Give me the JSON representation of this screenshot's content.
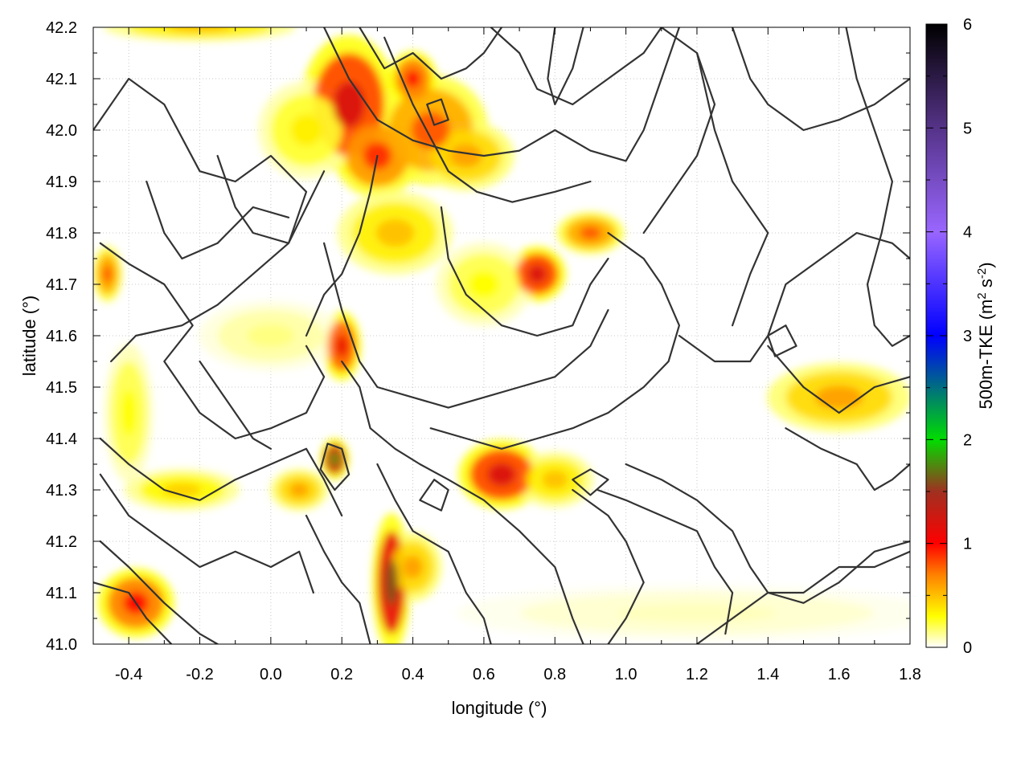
{
  "chart_data": {
    "type": "heatmap",
    "title": "",
    "xlabel": "longitude (°)",
    "ylabel": "latitude (°)",
    "colorbar_label": "500m-TKE (m2 s-2)",
    "colorbar_label_parts": {
      "prefix": "500m-TKE (m",
      "sup1": "2",
      "mid": " s",
      "sup2": "-2",
      "suffix": ")"
    },
    "xlim": [
      -0.5,
      1.8
    ],
    "ylim": [
      41.0,
      42.2
    ],
    "clim": [
      0,
      6
    ],
    "x_ticks": [
      -0.4,
      -0.2,
      0.0,
      0.2,
      0.4,
      0.6,
      0.8,
      1.0,
      1.2,
      1.4,
      1.6,
      1.8
    ],
    "x_tick_labels": [
      "-0.4",
      "-0.2",
      "0.0",
      "0.2",
      "0.4",
      "0.6",
      "0.8",
      "1.0",
      "1.2",
      "1.4",
      "1.6",
      "1.8"
    ],
    "y_ticks": [
      41.0,
      41.1,
      41.2,
      41.3,
      41.4,
      41.5,
      41.6,
      41.7,
      41.8,
      41.9,
      42.0,
      42.1,
      42.2
    ],
    "y_tick_labels": [
      "41.0",
      "41.1",
      "41.2",
      "41.3",
      "41.4",
      "41.5",
      "41.6",
      "41.7",
      "41.8",
      "41.9",
      "42.0",
      "42.1",
      "42.2"
    ],
    "colorbar_ticks": [
      0,
      1,
      2,
      3,
      4,
      5,
      6
    ],
    "colorbar_tick_labels": [
      "0",
      "1",
      "2",
      "3",
      "4",
      "5",
      "6"
    ],
    "colormap": [
      {
        "v": 0.0,
        "color": "#ffffff"
      },
      {
        "v": 0.3,
        "color": "#ffff00"
      },
      {
        "v": 0.7,
        "color": "#ff8000"
      },
      {
        "v": 1.0,
        "color": "#ff0000"
      },
      {
        "v": 1.5,
        "color": "#a03020"
      },
      {
        "v": 2.0,
        "color": "#00dd00"
      },
      {
        "v": 3.0,
        "color": "#0000ff"
      },
      {
        "v": 4.0,
        "color": "#9966ff"
      },
      {
        "v": 5.0,
        "color": "#553388"
      },
      {
        "v": 6.0,
        "color": "#000000"
      }
    ],
    "grid": true,
    "tke_features": [
      {
        "x": 0.22,
        "y": 42.05,
        "rx": 0.1,
        "ry": 0.1,
        "value": 1.2
      },
      {
        "x": 0.3,
        "y": 41.95,
        "rx": 0.09,
        "ry": 0.06,
        "value": 0.9
      },
      {
        "x": 0.45,
        "y": 42.0,
        "rx": 0.12,
        "ry": 0.08,
        "value": 0.8
      },
      {
        "x": 0.4,
        "y": 42.1,
        "rx": 0.05,
        "ry": 0.04,
        "value": 1.0
      },
      {
        "x": 0.55,
        "y": 41.95,
        "rx": 0.1,
        "ry": 0.05,
        "value": 0.6
      },
      {
        "x": 0.1,
        "y": 42.0,
        "rx": 0.1,
        "ry": 0.07,
        "value": 0.35
      },
      {
        "x": 0.35,
        "y": 41.8,
        "rx": 0.12,
        "ry": 0.06,
        "value": 0.5
      },
      {
        "x": 0.75,
        "y": 41.72,
        "rx": 0.06,
        "ry": 0.04,
        "value": 1.2
      },
      {
        "x": 0.9,
        "y": 41.8,
        "rx": 0.07,
        "ry": 0.03,
        "value": 0.8
      },
      {
        "x": 0.2,
        "y": 41.58,
        "rx": 0.04,
        "ry": 0.05,
        "value": 1.1
      },
      {
        "x": 0.18,
        "y": 41.36,
        "rx": 0.03,
        "ry": 0.03,
        "value": 1.8
      },
      {
        "x": 0.34,
        "y": 41.12,
        "rx": 0.04,
        "ry": 0.1,
        "value": 1.6
      },
      {
        "x": 0.4,
        "y": 41.15,
        "rx": 0.06,
        "ry": 0.05,
        "value": 0.6
      },
      {
        "x": 0.65,
        "y": 41.33,
        "rx": 0.09,
        "ry": 0.05,
        "value": 1.2
      },
      {
        "x": 0.8,
        "y": 41.32,
        "rx": 0.08,
        "ry": 0.04,
        "value": 0.5
      },
      {
        "x": -0.38,
        "y": 41.08,
        "rx": 0.08,
        "ry": 0.05,
        "value": 1.0
      },
      {
        "x": -0.46,
        "y": 41.72,
        "rx": 0.03,
        "ry": 0.04,
        "value": 0.8
      },
      {
        "x": -0.25,
        "y": 41.3,
        "rx": 0.12,
        "ry": 0.03,
        "value": 0.45
      },
      {
        "x": 0.08,
        "y": 41.3,
        "rx": 0.06,
        "ry": 0.03,
        "value": 0.6
      },
      {
        "x": 1.6,
        "y": 41.48,
        "rx": 0.15,
        "ry": 0.05,
        "value": 0.6
      },
      {
        "x": -0.2,
        "y": 42.2,
        "rx": 0.2,
        "ry": 0.02,
        "value": 0.5
      },
      {
        "x": 0.0,
        "y": 41.6,
        "rx": 0.15,
        "ry": 0.05,
        "value": 0.15
      },
      {
        "x": 1.2,
        "y": 41.06,
        "rx": 0.5,
        "ry": 0.04,
        "value": 0.08
      },
      {
        "x": 0.6,
        "y": 41.7,
        "rx": 0.1,
        "ry": 0.06,
        "value": 0.3
      },
      {
        "x": -0.4,
        "y": 41.45,
        "rx": 0.05,
        "ry": 0.1,
        "value": 0.3
      }
    ],
    "terrain_contours": [
      [
        [
          -0.5,
          42.0
        ],
        [
          -0.4,
          42.1
        ],
        [
          -0.3,
          42.05
        ],
        [
          -0.2,
          41.92
        ],
        [
          -0.1,
          41.9
        ],
        [
          0.0,
          41.95
        ],
        [
          0.1,
          41.88
        ],
        [
          0.05,
          41.78
        ],
        [
          -0.05,
          41.72
        ],
        [
          -0.15,
          41.66
        ],
        [
          -0.25,
          41.62
        ],
        [
          -0.38,
          41.6
        ],
        [
          -0.45,
          41.55
        ]
      ],
      [
        [
          -0.48,
          41.78
        ],
        [
          -0.4,
          41.74
        ],
        [
          -0.3,
          41.7
        ],
        [
          -0.22,
          41.62
        ],
        [
          -0.3,
          41.55
        ],
        [
          -0.2,
          41.45
        ],
        [
          -0.1,
          41.4
        ],
        [
          0.0,
          41.42
        ],
        [
          0.1,
          41.45
        ],
        [
          0.15,
          41.52
        ],
        [
          0.1,
          41.58
        ]
      ],
      [
        [
          -0.35,
          41.9
        ],
        [
          -0.3,
          41.8
        ],
        [
          -0.25,
          41.75
        ],
        [
          -0.15,
          41.78
        ],
        [
          -0.05,
          41.85
        ],
        [
          0.05,
          41.83
        ]
      ],
      [
        [
          -0.48,
          41.4
        ],
        [
          -0.4,
          41.35
        ],
        [
          -0.3,
          41.3
        ],
        [
          -0.2,
          41.28
        ],
        [
          -0.1,
          41.32
        ],
        [
          0.0,
          41.35
        ],
        [
          0.1,
          41.38
        ],
        [
          0.15,
          41.32
        ],
        [
          0.2,
          41.25
        ]
      ],
      [
        [
          -0.48,
          41.33
        ],
        [
          -0.4,
          41.25
        ],
        [
          -0.3,
          41.2
        ],
        [
          -0.2,
          41.15
        ],
        [
          -0.1,
          41.18
        ],
        [
          0.0,
          41.15
        ],
        [
          0.08,
          41.18
        ],
        [
          0.12,
          41.1
        ]
      ],
      [
        [
          -0.48,
          41.2
        ],
        [
          -0.4,
          41.15
        ],
        [
          -0.3,
          41.08
        ],
        [
          -0.2,
          41.02
        ],
        [
          -0.15,
          41.0
        ]
      ],
      [
        [
          -0.5,
          41.12
        ],
        [
          -0.4,
          41.1
        ],
        [
          -0.35,
          41.05
        ],
        [
          -0.28,
          41.0
        ]
      ],
      [
        [
          0.15,
          42.2
        ],
        [
          0.22,
          42.1
        ],
        [
          0.3,
          42.02
        ],
        [
          0.4,
          41.98
        ],
        [
          0.5,
          41.96
        ],
        [
          0.6,
          41.95
        ],
        [
          0.7,
          41.96
        ],
        [
          0.8,
          42.0
        ]
      ],
      [
        [
          0.32,
          42.18
        ],
        [
          0.4,
          42.05
        ],
        [
          0.5,
          41.92
        ],
        [
          0.58,
          41.88
        ],
        [
          0.68,
          41.86
        ],
        [
          0.8,
          41.88
        ],
        [
          0.9,
          41.9
        ]
      ],
      [
        [
          0.25,
          42.2
        ],
        [
          0.32,
          42.12
        ],
        [
          0.4,
          42.15
        ],
        [
          0.48,
          42.1
        ],
        [
          0.55,
          42.12
        ],
        [
          0.6,
          42.15
        ],
        [
          0.65,
          42.2
        ]
      ],
      [
        [
          0.62,
          42.2
        ],
        [
          0.7,
          42.15
        ],
        [
          0.75,
          42.08
        ],
        [
          0.85,
          42.05
        ],
        [
          0.95,
          42.1
        ],
        [
          1.05,
          42.15
        ],
        [
          1.1,
          42.2
        ]
      ],
      [
        [
          0.8,
          42.0
        ],
        [
          0.9,
          41.96
        ],
        [
          1.0,
          41.94
        ],
        [
          1.05,
          42.0
        ],
        [
          1.1,
          42.1
        ],
        [
          1.15,
          42.2
        ]
      ],
      [
        [
          -0.15,
          41.95
        ],
        [
          -0.1,
          41.85
        ],
        [
          -0.05,
          41.8
        ],
        [
          0.05,
          41.78
        ],
        [
          0.1,
          41.85
        ],
        [
          0.15,
          41.92
        ]
      ],
      [
        [
          0.15,
          41.78
        ],
        [
          0.2,
          41.65
        ],
        [
          0.25,
          41.55
        ],
        [
          0.3,
          41.5
        ],
        [
          0.4,
          41.48
        ],
        [
          0.5,
          41.46
        ],
        [
          0.6,
          41.48
        ],
        [
          0.7,
          41.5
        ],
        [
          0.8,
          41.52
        ],
        [
          0.9,
          41.58
        ],
        [
          0.95,
          41.65
        ]
      ],
      [
        [
          0.48,
          41.85
        ],
        [
          0.5,
          41.75
        ],
        [
          0.55,
          41.68
        ],
        [
          0.65,
          41.62
        ],
        [
          0.75,
          41.6
        ],
        [
          0.85,
          41.62
        ],
        [
          0.9,
          41.7
        ],
        [
          0.95,
          41.75
        ]
      ],
      [
        [
          0.95,
          41.8
        ],
        [
          1.05,
          41.75
        ],
        [
          1.1,
          41.7
        ],
        [
          1.15,
          41.62
        ],
        [
          1.12,
          41.55
        ],
        [
          1.05,
          41.5
        ],
        [
          0.95,
          41.45
        ],
        [
          0.85,
          41.42
        ],
        [
          0.75,
          41.4
        ],
        [
          0.65,
          41.38
        ],
        [
          0.55,
          41.4
        ],
        [
          0.45,
          41.42
        ]
      ],
      [
        [
          0.2,
          41.55
        ],
        [
          0.25,
          41.5
        ],
        [
          0.28,
          41.42
        ],
        [
          0.35,
          41.38
        ],
        [
          0.42,
          41.35
        ],
        [
          0.5,
          41.32
        ],
        [
          0.6,
          41.28
        ],
        [
          0.7,
          41.22
        ],
        [
          0.8,
          41.15
        ],
        [
          0.85,
          41.05
        ],
        [
          0.88,
          41.0
        ]
      ],
      [
        [
          0.3,
          41.35
        ],
        [
          0.35,
          41.28
        ],
        [
          0.4,
          41.22
        ],
        [
          0.5,
          41.18
        ],
        [
          0.55,
          41.1
        ],
        [
          0.6,
          41.05
        ],
        [
          0.62,
          41.0
        ]
      ],
      [
        [
          0.1,
          41.25
        ],
        [
          0.15,
          41.18
        ],
        [
          0.2,
          41.12
        ],
        [
          0.25,
          41.08
        ],
        [
          0.28,
          41.0
        ]
      ],
      [
        [
          0.85,
          41.3
        ],
        [
          0.95,
          41.25
        ],
        [
          1.0,
          41.2
        ],
        [
          1.05,
          41.12
        ],
        [
          1.0,
          41.05
        ],
        [
          0.95,
          41.0
        ]
      ],
      [
        [
          0.92,
          41.3
        ],
        [
          1.0,
          41.28
        ],
        [
          1.1,
          41.25
        ],
        [
          1.2,
          41.22
        ],
        [
          1.25,
          41.15
        ],
        [
          1.3,
          41.1
        ],
        [
          1.28,
          41.02
        ]
      ],
      [
        [
          1.0,
          41.35
        ],
        [
          1.1,
          41.32
        ],
        [
          1.2,
          41.28
        ],
        [
          1.3,
          41.22
        ],
        [
          1.35,
          41.15
        ],
        [
          1.4,
          41.1
        ],
        [
          1.5,
          41.08
        ],
        [
          1.6,
          41.12
        ],
        [
          1.7,
          41.18
        ],
        [
          1.8,
          41.2
        ]
      ],
      [
        [
          1.2,
          41.0
        ],
        [
          1.3,
          41.05
        ],
        [
          1.4,
          41.1
        ],
        [
          1.5,
          41.1
        ],
        [
          1.6,
          41.15
        ],
        [
          1.7,
          41.15
        ],
        [
          1.8,
          41.18
        ]
      ],
      [
        [
          1.15,
          41.6
        ],
        [
          1.25,
          41.55
        ],
        [
          1.35,
          41.55
        ],
        [
          1.4,
          41.6
        ],
        [
          1.45,
          41.7
        ],
        [
          1.55,
          41.75
        ],
        [
          1.65,
          41.8
        ],
        [
          1.75,
          41.78
        ],
        [
          1.8,
          41.75
        ]
      ],
      [
        [
          1.3,
          42.2
        ],
        [
          1.35,
          42.1
        ],
        [
          1.4,
          42.05
        ],
        [
          1.5,
          42.0
        ],
        [
          1.6,
          42.02
        ],
        [
          1.7,
          42.05
        ],
        [
          1.8,
          42.1
        ]
      ],
      [
        [
          1.2,
          42.15
        ],
        [
          1.25,
          42.0
        ],
        [
          1.3,
          41.9
        ],
        [
          1.35,
          41.85
        ],
        [
          1.4,
          41.8
        ],
        [
          1.35,
          41.72
        ],
        [
          1.3,
          41.62
        ]
      ],
      [
        [
          1.05,
          41.8
        ],
        [
          1.1,
          41.85
        ],
        [
          1.2,
          41.95
        ],
        [
          1.25,
          42.05
        ],
        [
          1.2,
          42.15
        ],
        [
          1.1,
          42.2
        ]
      ],
      [
        [
          1.45,
          41.42
        ],
        [
          1.55,
          41.38
        ],
        [
          1.65,
          41.35
        ],
        [
          1.7,
          41.3
        ],
        [
          1.75,
          41.32
        ],
        [
          1.8,
          41.35
        ]
      ],
      [
        [
          1.4,
          41.58
        ],
        [
          1.5,
          41.5
        ],
        [
          1.6,
          41.45
        ],
        [
          1.7,
          41.5
        ],
        [
          1.8,
          41.52
        ]
      ],
      [
        [
          1.62,
          42.2
        ],
        [
          1.65,
          42.1
        ],
        [
          1.7,
          42.0
        ],
        [
          1.75,
          41.9
        ],
        [
          1.72,
          41.8
        ],
        [
          1.68,
          41.7
        ],
        [
          1.7,
          41.62
        ],
        [
          1.75,
          41.58
        ],
        [
          1.8,
          41.6
        ]
      ],
      [
        [
          -0.2,
          41.55
        ],
        [
          -0.15,
          41.5
        ],
        [
          -0.1,
          41.45
        ],
        [
          -0.05,
          41.4
        ],
        [
          0.0,
          41.38
        ]
      ],
      [
        [
          0.14,
          41.34
        ],
        [
          0.16,
          41.39
        ],
        [
          0.2,
          41.38
        ],
        [
          0.22,
          41.33
        ],
        [
          0.18,
          41.3
        ],
        [
          0.14,
          41.34
        ]
      ],
      [
        [
          0.42,
          41.28
        ],
        [
          0.46,
          41.32
        ],
        [
          0.5,
          41.3
        ],
        [
          0.48,
          41.26
        ],
        [
          0.42,
          41.28
        ]
      ],
      [
        [
          0.85,
          41.32
        ],
        [
          0.9,
          41.34
        ],
        [
          0.95,
          41.32
        ],
        [
          0.9,
          41.29
        ],
        [
          0.85,
          41.32
        ]
      ],
      [
        [
          0.44,
          42.05
        ],
        [
          0.48,
          42.06
        ],
        [
          0.5,
          42.02
        ],
        [
          0.46,
          42.01
        ],
        [
          0.44,
          42.05
        ]
      ],
      [
        [
          1.4,
          41.6
        ],
        [
          1.45,
          41.62
        ],
        [
          1.48,
          41.58
        ],
        [
          1.42,
          41.56
        ],
        [
          1.4,
          41.6
        ]
      ],
      [
        [
          0.1,
          41.6
        ],
        [
          0.15,
          41.68
        ],
        [
          0.2,
          41.72
        ],
        [
          0.25,
          41.8
        ],
        [
          0.28,
          41.88
        ],
        [
          0.3,
          41.95
        ]
      ],
      [
        [
          0.8,
          42.2
        ],
        [
          0.78,
          42.1
        ],
        [
          0.8,
          42.05
        ],
        [
          0.85,
          42.12
        ],
        [
          0.88,
          42.2
        ]
      ]
    ]
  }
}
